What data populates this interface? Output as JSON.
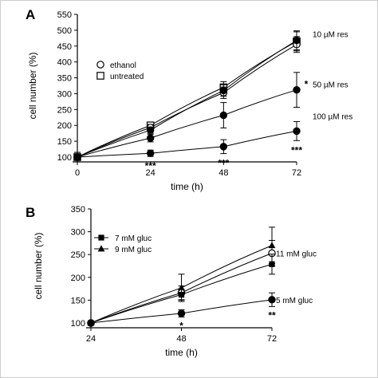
{
  "colors": {
    "ink": "#000000",
    "open_fill": "#ffffff",
    "frame": "#cccccc"
  },
  "chart_data": [
    {
      "panel_label": "A",
      "type": "line",
      "xlabel": "time (h)",
      "ylabel": "cell number (%)",
      "xticks": [
        "0",
        "24",
        "48",
        "72"
      ],
      "xlim": [
        0,
        72
      ],
      "ylim": [
        100,
        550
      ],
      "yticks": [
        "100",
        "150",
        "200",
        "250",
        "300",
        "350",
        "400",
        "450",
        "500",
        "550"
      ],
      "x": [
        0,
        24,
        48,
        72
      ],
      "legend": [
        {
          "label": "ethanol",
          "marker": "open-circle"
        },
        {
          "label": "untreated",
          "marker": "open-square"
        }
      ],
      "series": [
        {
          "name": "untreated",
          "marker": "open-square",
          "values": [
            100,
            200,
            320,
            465
          ],
          "err": [
            15,
            10,
            18,
            30
          ]
        },
        {
          "name": "ethanol",
          "marker": "open-circle",
          "values": [
            100,
            193,
            303,
            455
          ],
          "err": [
            15,
            10,
            18,
            25
          ]
        },
        {
          "name": "10 µM res",
          "marker": "filled-circle",
          "values": [
            100,
            185,
            310,
            468
          ],
          "err": [
            15,
            10,
            18,
            30
          ]
        },
        {
          "name": "50 µM res",
          "marker": "filled-circle",
          "values": [
            100,
            160,
            232,
            312
          ],
          "err": [
            15,
            12,
            40,
            55
          ],
          "annotations": [
            "",
            "",
            "",
            "*"
          ]
        },
        {
          "name": "100 µM res",
          "marker": "filled-circle",
          "values": [
            100,
            112,
            133,
            182
          ],
          "err": [
            15,
            10,
            22,
            30
          ],
          "annotations": [
            "",
            "***",
            "***",
            "***"
          ]
        }
      ]
    },
    {
      "panel_label": "B",
      "type": "line",
      "xlabel": "time (h)",
      "ylabel": "cell number (%)",
      "xticks": [
        "24",
        "48",
        "72"
      ],
      "xlim": [
        24,
        72
      ],
      "ylim": [
        100,
        350
      ],
      "yticks": [
        "100",
        "150",
        "200",
        "250",
        "300",
        "350"
      ],
      "x": [
        24,
        48,
        72
      ],
      "legend": [
        {
          "label": "7 mM gluc",
          "marker": "filled-square"
        },
        {
          "label": "9 mM gluc",
          "marker": "filled-triangle"
        }
      ],
      "series": [
        {
          "name": "9 mM gluc",
          "marker": "filled-triangle",
          "values": [
            100,
            177,
            270
          ],
          "err": [
            3,
            30,
            40
          ]
        },
        {
          "name": "11 mM gluc",
          "marker": "open-circle",
          "values": [
            100,
            166,
            253
          ],
          "err": [
            3,
            15,
            28
          ]
        },
        {
          "name": "7 mM gluc",
          "marker": "filled-square",
          "values": [
            100,
            162,
            229
          ],
          "err": [
            3,
            12,
            22
          ]
        },
        {
          "name": "5 mM gluc",
          "marker": "filled-circle",
          "values": [
            100,
            121,
            151
          ],
          "err": [
            3,
            8,
            15
          ],
          "annotations": [
            "",
            "*",
            "**"
          ]
        }
      ]
    }
  ]
}
